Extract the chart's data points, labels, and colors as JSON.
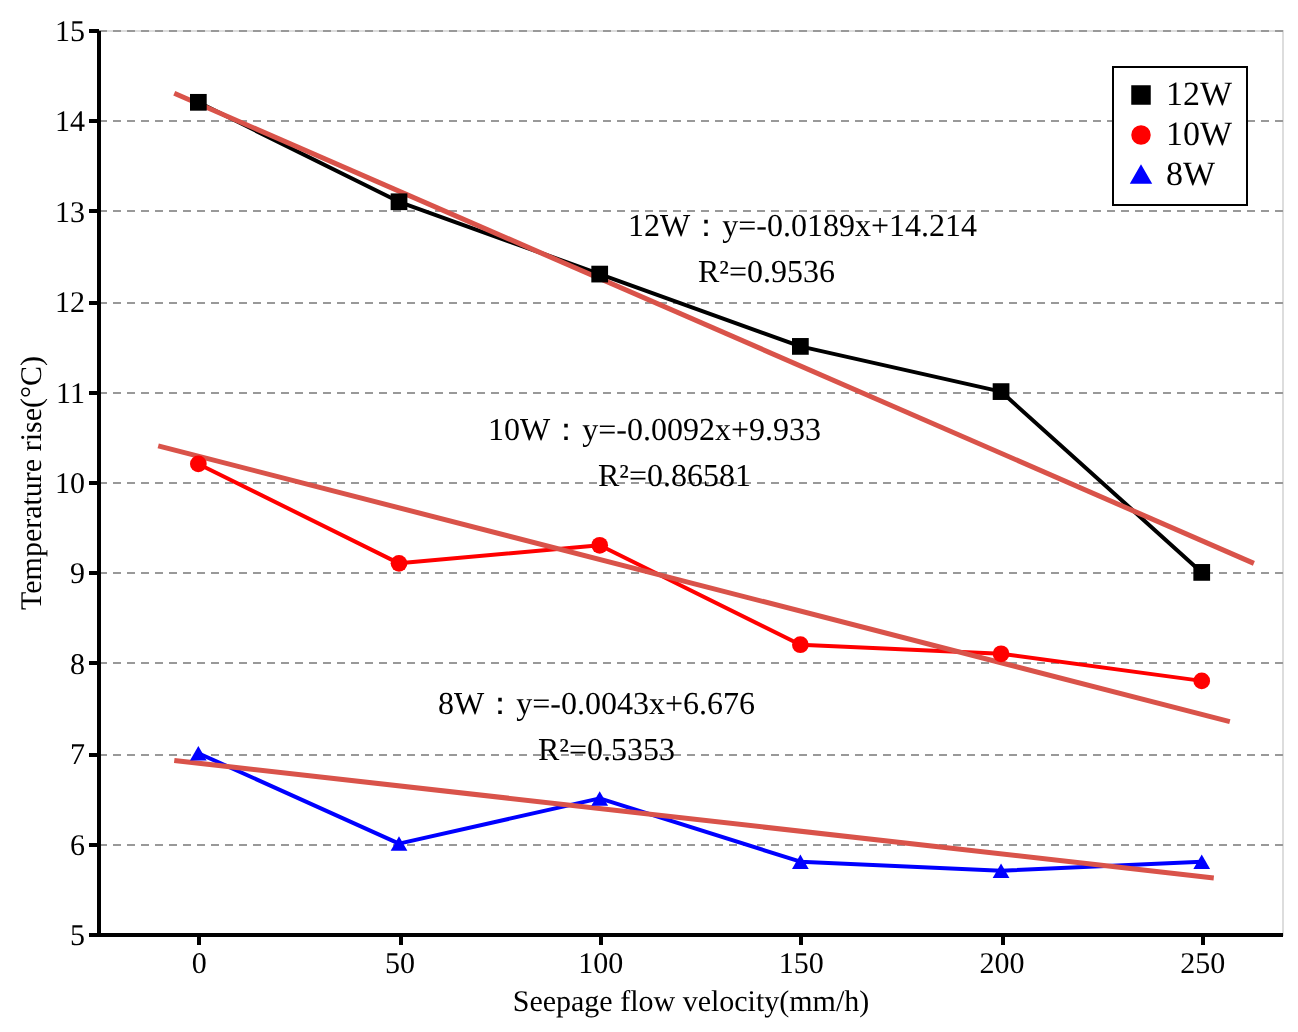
{
  "chart_data": {
    "type": "line",
    "xlabel": "Seepage flow velocity(mm/h)",
    "ylabel": "Temperature rise(°C)",
    "x": [
      0,
      50,
      100,
      150,
      200,
      250
    ],
    "series": [
      {
        "name": "12W",
        "color": "#000000",
        "marker": "square",
        "values": [
          14.2,
          13.1,
          12.3,
          11.5,
          11.0,
          9.0
        ]
      },
      {
        "name": "10W",
        "color": "#ff0000",
        "marker": "circle",
        "values": [
          10.2,
          9.1,
          9.3,
          8.2,
          8.1,
          7.8
        ]
      },
      {
        "name": "8W",
        "color": "#0000ff",
        "marker": "triangle",
        "values": [
          7.0,
          6.0,
          6.5,
          5.8,
          5.7,
          5.8
        ]
      },
      {
        "type": "line",
        "color": "#d9534a",
        "x": [
          -6,
          263
        ],
        "values": [
          14.3,
          9.1
        ]
      },
      {
        "type": "line",
        "color": "#d9534a",
        "x": [
          -10,
          257
        ],
        "values": [
          10.4,
          7.35
        ]
      },
      {
        "type": "line",
        "color": "#d9534a",
        "x": [
          -6,
          253
        ],
        "values": [
          6.92,
          5.62
        ]
      }
    ],
    "xlim": [
      -25,
      270
    ],
    "xticks": [
      0,
      50,
      100,
      150,
      200,
      250
    ],
    "ylim": [
      5,
      15
    ],
    "yticks": [
      5,
      6,
      7,
      8,
      9,
      10,
      11,
      12,
      13,
      14,
      15
    ],
    "grid": "y",
    "legend": "top right",
    "line_style": "solid",
    "annotations": [
      "12W：y=-0.0189x+14.214",
      "R²=0.9536",
      "10W：y=-0.0092x+9.933",
      "R²=0.86581",
      "8W：y=-0.0043x+6.676",
      "R²=0.5353"
    ]
  }
}
